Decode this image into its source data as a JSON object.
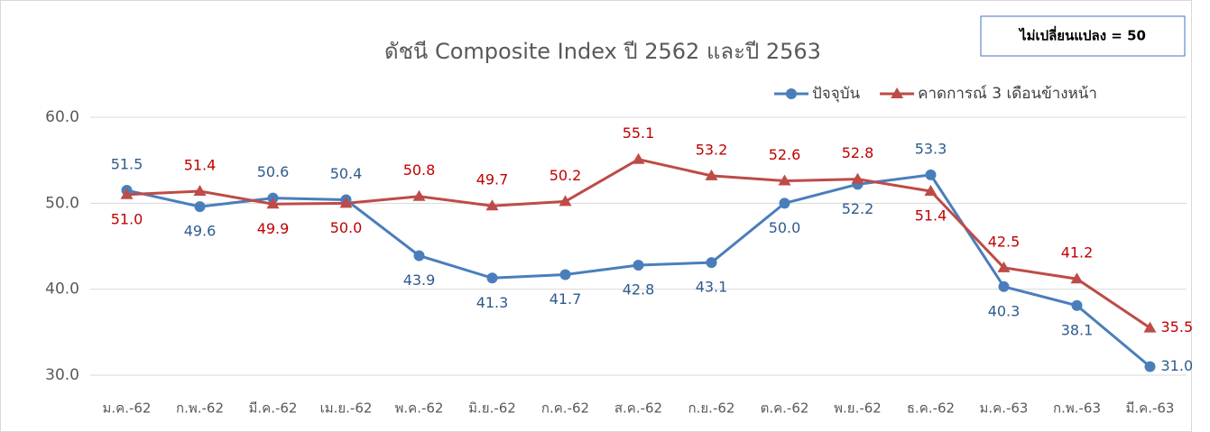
{
  "chart_data": {
    "type": "line",
    "title": "ดัชนี Composite Index ปี 2562 และปี 2563",
    "annotation": "ไม่เปลี่ยนแปลง = 50",
    "categories": [
      "ม.ค.-62",
      "ก.พ.-62",
      "มี.ค.-62",
      "เม.ย.-62",
      "พ.ค.-62",
      "มิ.ย.-62",
      "ก.ค.-62",
      "ส.ค.-62",
      "ก.ย.-62",
      "ต.ค.-62",
      "พ.ย.-62",
      "ธ.ค.-62",
      "ม.ค.-63",
      "ก.พ.-63",
      "มี.ค.-63"
    ],
    "series": [
      {
        "name": "ปัจจุบัน",
        "color": "#4a7ebb",
        "label_color": "#2e5a8e",
        "marker": "circle",
        "values": [
          51.5,
          49.6,
          50.6,
          50.4,
          43.9,
          41.3,
          41.7,
          42.8,
          43.1,
          50.0,
          52.2,
          53.3,
          40.3,
          38.1,
          31.0
        ],
        "value_labels": [
          "51.5",
          "49.6",
          "50.6",
          "50.4",
          "43.9",
          "41.3",
          "41.7",
          "42.8",
          "43.1",
          "50.0",
          "52.2",
          "53.3",
          "40.3",
          "38.1",
          "31.0"
        ]
      },
      {
        "name": "คาดการณ์ 3 เดือนข้างหน้า",
        "color": "#be4b48",
        "label_color": "#c00000",
        "marker": "triangle",
        "values": [
          51.0,
          51.4,
          49.9,
          50.0,
          50.8,
          49.7,
          50.2,
          55.1,
          53.2,
          52.6,
          52.8,
          51.4,
          42.5,
          41.2,
          35.5
        ],
        "value_labels": [
          "51.0",
          "51.4",
          "49.9",
          "50.0",
          "50.8",
          "49.7",
          "50.2",
          "55.1",
          "53.2",
          "52.6",
          "52.8",
          "51.4",
          "42.5",
          "41.2",
          "35.5"
        ]
      }
    ],
    "ylim": [
      30,
      60
    ],
    "yticks": [
      {
        "value": 30,
        "label": "30.0"
      },
      {
        "value": 40,
        "label": "40.0"
      },
      {
        "value": 50,
        "label": "50.0"
      },
      {
        "value": 60,
        "label": "60.0"
      }
    ],
    "grid": true,
    "legend": "top-right"
  }
}
